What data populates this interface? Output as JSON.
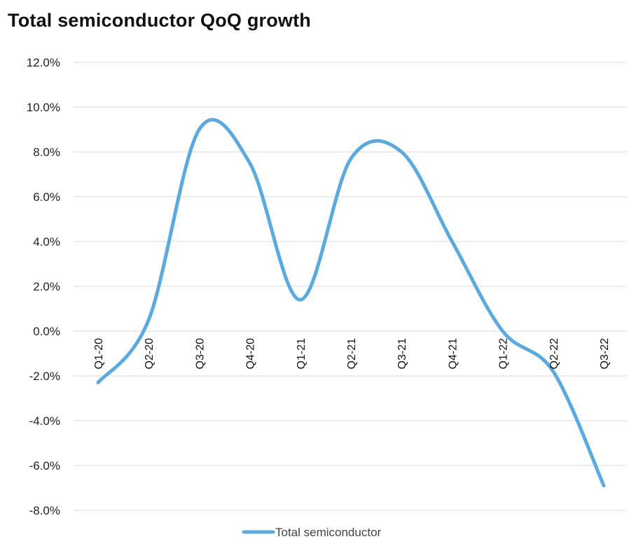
{
  "chart_data": {
    "type": "line",
    "title": "Total semiconductor QoQ growth",
    "categories": [
      "Q1-20",
      "Q2-20",
      "Q3-20",
      "Q4-20",
      "Q1-21",
      "Q2-21",
      "Q3-21",
      "Q4-21",
      "Q1-22",
      "Q2-22",
      "Q3-22"
    ],
    "series": [
      {
        "name": "Total semiconductor",
        "color": "#5aaae0",
        "values": [
          -2.3,
          0.5,
          9.0,
          7.5,
          1.4,
          7.7,
          8.0,
          4.0,
          0.0,
          -1.8,
          -6.9
        ]
      }
    ],
    "ylim": [
      -8,
      12
    ],
    "yticks": [
      12,
      10,
      8,
      6,
      4,
      2,
      0,
      -2,
      -4,
      -6,
      -8
    ],
    "ytick_labels": [
      "12.0%",
      "10.0%",
      "8.0%",
      "6.0%",
      "4.0%",
      "2.0%",
      "0.0%",
      "-2.0%",
      "-4.0%",
      "-6.0%",
      "-8.0%"
    ],
    "grid": true,
    "legend_position": "bottom-center",
    "smooth": true
  }
}
